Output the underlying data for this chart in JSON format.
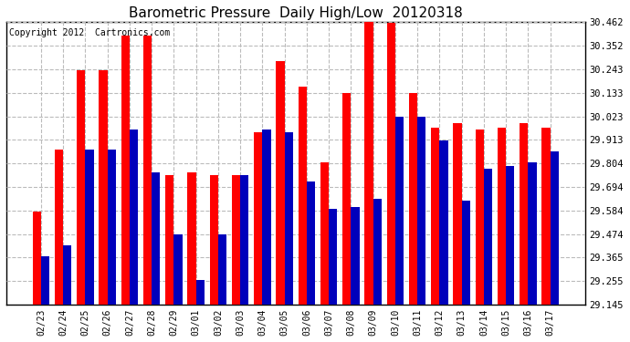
{
  "title": "Barometric Pressure  Daily High/Low  20120318",
  "copyright": "Copyright 2012  Cartronics.com",
  "dates": [
    "02/23",
    "02/24",
    "02/25",
    "02/26",
    "02/27",
    "02/28",
    "02/29",
    "03/01",
    "03/02",
    "03/03",
    "03/04",
    "03/05",
    "03/06",
    "03/07",
    "03/08",
    "03/09",
    "03/10",
    "03/11",
    "03/12",
    "03/13",
    "03/14",
    "03/15",
    "03/16",
    "03/17"
  ],
  "highs": [
    29.58,
    29.87,
    30.24,
    30.24,
    30.4,
    30.4,
    29.75,
    29.76,
    29.75,
    29.75,
    29.95,
    30.28,
    30.16,
    29.81,
    30.13,
    30.47,
    30.46,
    30.13,
    29.97,
    29.99,
    29.96,
    29.97,
    29.99,
    29.97
  ],
  "lows": [
    29.37,
    29.42,
    29.87,
    29.87,
    29.96,
    29.76,
    29.47,
    29.26,
    29.47,
    29.75,
    29.96,
    29.95,
    29.72,
    29.59,
    29.6,
    29.64,
    30.02,
    30.02,
    29.91,
    29.63,
    29.78,
    29.79,
    29.81,
    29.86
  ],
  "ylim_min": 29.145,
  "ylim_max": 30.462,
  "yticks": [
    29.145,
    29.255,
    29.365,
    29.474,
    29.584,
    29.694,
    29.804,
    29.913,
    30.023,
    30.133,
    30.243,
    30.352,
    30.462
  ],
  "bar_color_high": "#ff0000",
  "bar_color_low": "#0000bb",
  "bg_color": "#ffffff",
  "grid_color": "#bbbbbb",
  "title_fontsize": 11,
  "copyright_fontsize": 7
}
